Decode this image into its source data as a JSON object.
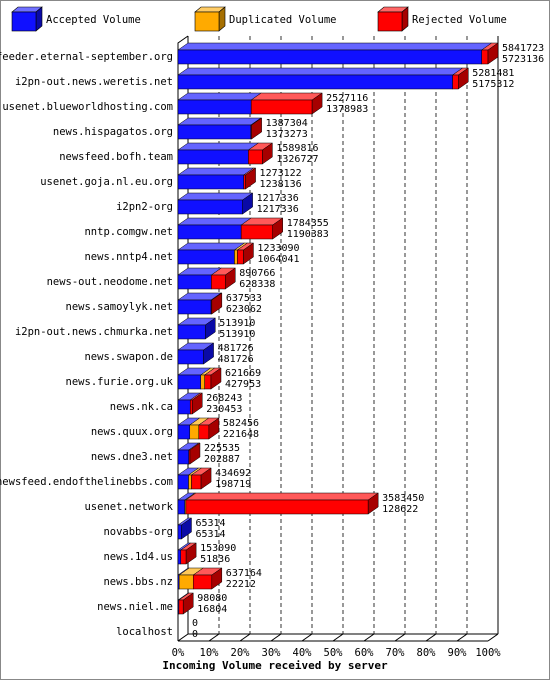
{
  "chart_data": {
    "type": "bar3d",
    "orientation": "horizontal",
    "stacked": true,
    "xlabel": "Incoming Volume received by server",
    "categories": [
      "feeder.eternal-september.org",
      "i2pn-out.news.weretis.net",
      "usenet.blueworldhosting.com",
      "news.hispagatos.org",
      "newsfeed.bofh.team",
      "usenet.goja.nl.eu.org",
      "i2pn2-org",
      "nntp.comgw.net",
      "news.nntp4.net",
      "news-out.neodome.net",
      "news.samoylyk.net",
      "i2pn-out.news.chmurka.net",
      "news.swapon.de",
      "news.furie.org.uk",
      "news.nk.ca",
      "news.quux.org",
      "news.dne3.net",
      "newsfeed.endofthelinebbs.com",
      "usenet.network",
      "novabbs-org",
      "news.1d4.us",
      "news.bbs.nz",
      "news.niel.me",
      "localhost"
    ],
    "series": [
      {
        "name": "Accepted Volume",
        "color": "#1010ff",
        "values": [
          5723136,
          5175312,
          1378983,
          1373273,
          1326727,
          1238136,
          1217336,
          1190383,
          1064041,
          628338,
          623062,
          513910,
          481726,
          427953,
          230453,
          221648,
          202887,
          198719,
          128622,
          65314,
          51836,
          22212,
          16804,
          0
        ]
      },
      {
        "name": "Duplicated Volume",
        "color": "#ffaa00",
        "values": [
          0,
          0,
          0,
          0,
          0,
          0,
          0,
          0,
          55000,
          0,
          0,
          0,
          0,
          75000,
          0,
          170000,
          0,
          55000,
          20000,
          0,
          0,
          265000,
          0,
          0
        ]
      },
      {
        "name": "Rejected Volume",
        "color": "#ff0000",
        "values": [
          118587,
          106169,
          1148133,
          14031,
          263089,
          34986,
          0,
          593972,
          114049,
          262428,
          14471,
          0,
          0,
          118716,
          37790,
          190808,
          22648,
          180973,
          3434828,
          0,
          101254,
          349952,
          81276,
          0
        ]
      }
    ],
    "totals": [
      5841723,
      5281481,
      2527116,
      1387304,
      1589816,
      1273122,
      1217336,
      1784355,
      1233090,
      890766,
      637533,
      513910,
      481726,
      621669,
      268243,
      582456,
      225535,
      434692,
      3583450,
      65314,
      153090,
      637164,
      98080,
      0
    ],
    "xlim": [
      0,
      5841723
    ],
    "xticks": [
      {
        "value": 0,
        "label": "0%"
      },
      {
        "value": 584172.3,
        "label": "10%"
      },
      {
        "value": 1168344.6,
        "label": "20%"
      },
      {
        "value": 1752516.9,
        "label": "30%"
      },
      {
        "value": 2336689.2,
        "label": "40%"
      },
      {
        "value": 2920861.5,
        "label": "50%"
      },
      {
        "value": 3505033.8,
        "label": "60%"
      },
      {
        "value": 4089206.1,
        "label": "70%"
      },
      {
        "value": 4673378.4,
        "label": "80%"
      },
      {
        "value": 5257550.7,
        "label": "90%"
      },
      {
        "value": 5841723,
        "label": "100%"
      }
    ],
    "grid": true
  }
}
